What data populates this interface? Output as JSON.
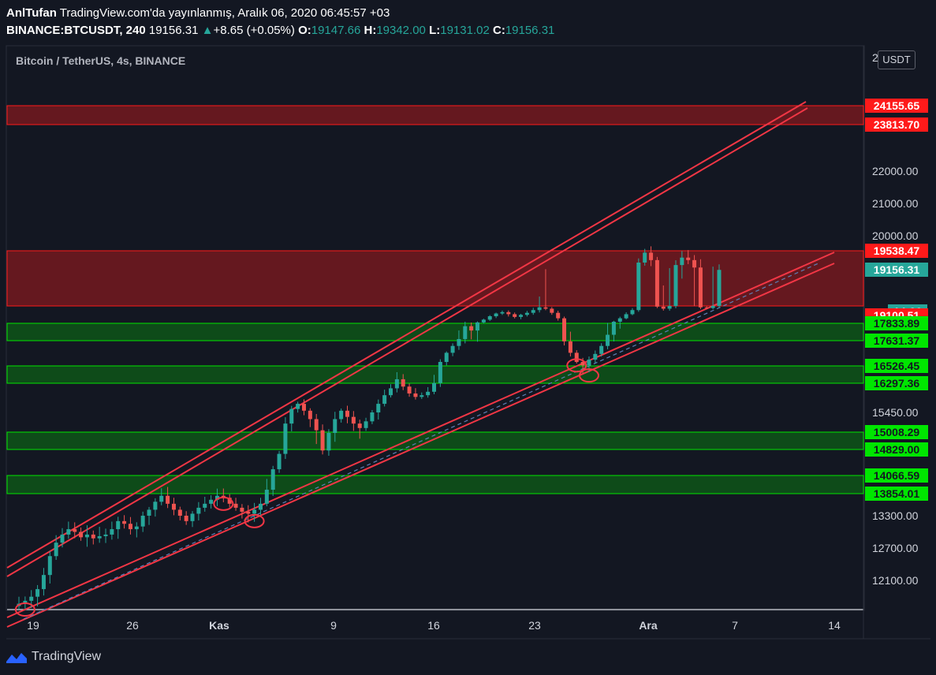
{
  "header": {
    "author": "AnlTufan",
    "published": "TradingView.com'da yayınlanmış, Aralık 06, 2020 06:45:57 +03",
    "symbol": "BINANCE:BTCUSDT, 240",
    "last": "19156.31",
    "change": "+8.65 (+0.05%)",
    "o_label": "O:",
    "o": "19147.66",
    "h_label": "H:",
    "h": "19342.00",
    "l_label": "L:",
    "l": "19131.02",
    "c_label": "C:",
    "c": "19156.31"
  },
  "currency_button": "USDT",
  "footer": {
    "brand": "TradingView"
  },
  "colors": {
    "background": "#131722",
    "up": "#26a69a",
    "down": "#ef5350",
    "trend": "#f23645",
    "resistance_zone": "#ff1a1a",
    "support_zone": "#00e600"
  },
  "chart_data": {
    "type": "candlestick",
    "title": "Bitcoin / TetherUS, 4s, BINANCE",
    "x_ticks": [
      "19",
      "26",
      "Kas",
      "9",
      "16",
      "23",
      "Ara",
      "7",
      "14"
    ],
    "y_ticks": [
      "22000.00",
      "21000.00",
      "20000.00",
      "15450.00",
      "13300.00",
      "12700.00",
      "12100.00"
    ],
    "y_axis_top_label": "2",
    "ylim": [
      11600,
      25000
    ],
    "price_tags": [
      {
        "label": "24155.65",
        "style": "red",
        "value": 24155.65
      },
      {
        "label": "23813.70",
        "style": "red",
        "value": 23813.7
      },
      {
        "label": "19538.47",
        "style": "red",
        "value": 19538.47
      },
      {
        "label": "19156.31",
        "style": "teal",
        "value": 19156.31
      },
      {
        "label": "14:06",
        "style": "teal2",
        "value": 18700
      },
      {
        "label": "19100.51",
        "style": "red",
        "value": 18400
      },
      {
        "label": "17833.89",
        "style": "green",
        "value": 17833.89
      },
      {
        "label": "17631.37",
        "style": "green",
        "value": 17631.37
      },
      {
        "label": "16526.45",
        "style": "green",
        "value": 16526.45
      },
      {
        "label": "16297.36",
        "style": "green",
        "value": 16297.36
      },
      {
        "label": "15008.29",
        "style": "green",
        "value": 15008.29
      },
      {
        "label": "14829.00",
        "style": "green",
        "value": 14829.0
      },
      {
        "label": "14066.59",
        "style": "green",
        "value": 14066.59
      },
      {
        "label": "13854.01",
        "style": "green",
        "value": 13854.01
      }
    ],
    "zones": [
      {
        "kind": "resistance",
        "low": 23813.7,
        "high": 24155.65
      },
      {
        "kind": "resistance",
        "low": 19100.51,
        "high": 19538.47
      },
      {
        "kind": "support",
        "low": 17631.37,
        "high": 17833.89
      },
      {
        "kind": "support",
        "low": 16297.36,
        "high": 16526.45
      },
      {
        "kind": "support",
        "low": 14829.0,
        "high": 15008.29
      },
      {
        "kind": "support",
        "low": 13854.01,
        "high": 14066.59
      }
    ],
    "closes": [
      11700,
      11750,
      11820,
      11950,
      12200,
      12550,
      12800,
      12950,
      13050,
      13000,
      12900,
      12950,
      12880,
      12920,
      12950,
      13050,
      13200,
      13150,
      13050,
      13100,
      13300,
      13450,
      13650,
      13800,
      13600,
      13450,
      13300,
      13200,
      13350,
      13500,
      13600,
      13700,
      13800,
      13750,
      13600,
      13500,
      13400,
      13350,
      13450,
      13600,
      13900,
      14250,
      14700,
      15200,
      15550,
      15700,
      15500,
      15300,
      15050,
      14800,
      15000,
      15300,
      15500,
      15350,
      15200,
      15100,
      15250,
      15450,
      15700,
      15950,
      16150,
      16350,
      16200,
      16000,
      15900,
      15950,
      16050,
      16300,
      16700,
      17100,
      17400,
      17650,
      17800,
      17750,
      17900,
      18100,
      18350,
      18550,
      18650,
      18500,
      18300,
      18450,
      18600,
      18800,
      19000,
      18900,
      18600,
      18200,
      17600,
      17100,
      16700,
      16550,
      16800,
      17050,
      17400,
      17700,
      17950,
      18200,
      18500,
      18800,
      19300,
      19500,
      19350,
      19050,
      18900,
      19100,
      19250,
      19400,
      19350,
      19200,
      19000,
      18950,
      19100,
      19156
    ],
    "circled_lows_date_index": [
      1,
      33,
      38,
      90,
      92
    ]
  }
}
